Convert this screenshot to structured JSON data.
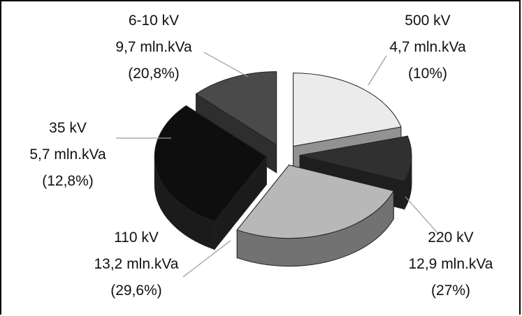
{
  "chart_data": {
    "type": "pie",
    "title": "",
    "slices": [
      {
        "voltage": "6-10 kV",
        "capacity": "9,7 mln.kVa",
        "share_label": "(20,8%)",
        "share": 20.8,
        "color": "#ebebeb"
      },
      {
        "voltage": "500 kV",
        "capacity": "4,7 mln.kVa",
        "share_label": "(10%)",
        "share": 10.0,
        "color": "#303030"
      },
      {
        "voltage": "220 kV",
        "capacity": "12,9 mln.kVa",
        "share_label": "(27%)",
        "share": 27.0,
        "color": "#b8b8b8"
      },
      {
        "voltage": "110 kV",
        "capacity": "13,2 mln.kVa",
        "share_label": "(29,6%)",
        "share": 29.6,
        "color": "#0e0e0e"
      },
      {
        "voltage": "35 kV",
        "capacity": "5,7 mln.kVa",
        "share_label": "(12,8%)",
        "share": 12.8,
        "color": "#4a4a4a"
      }
    ]
  }
}
